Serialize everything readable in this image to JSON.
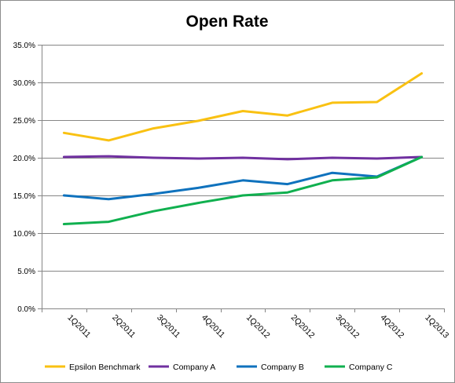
{
  "chart_data": {
    "type": "line",
    "title": "Open Rate",
    "categories": [
      "1Q2011",
      "2Q2011",
      "3Q2011",
      "4Q2011",
      "1Q2012",
      "2Q2012",
      "3Q2012",
      "4Q2012",
      "1Q2013"
    ],
    "series": [
      {
        "name": "Epsilon Benchmark",
        "color": "#f9c112",
        "values": [
          23.3,
          22.3,
          23.9,
          24.9,
          26.2,
          25.6,
          27.3,
          27.4,
          31.2
        ]
      },
      {
        "name": "Company A",
        "color": "#7030a0",
        "values": [
          20.1,
          20.2,
          20.0,
          19.9,
          20.0,
          19.8,
          20.0,
          19.9,
          20.1
        ]
      },
      {
        "name": "Company B",
        "color": "#0f72bd",
        "values": [
          15.0,
          14.5,
          15.2,
          16.0,
          17.0,
          16.5,
          18.0,
          17.5,
          20.1
        ]
      },
      {
        "name": "Company C",
        "color": "#10b04f",
        "values": [
          11.2,
          11.5,
          12.9,
          14.0,
          15.0,
          15.4,
          17.0,
          17.4,
          20.1
        ]
      }
    ],
    "yticks": [
      "0.0%",
      "5.0%",
      "10.0%",
      "15.0%",
      "20.0%",
      "25.0%",
      "30.0%",
      "35.0%"
    ],
    "ylim": [
      0,
      35
    ],
    "grid": true,
    "legend": "bottom"
  }
}
